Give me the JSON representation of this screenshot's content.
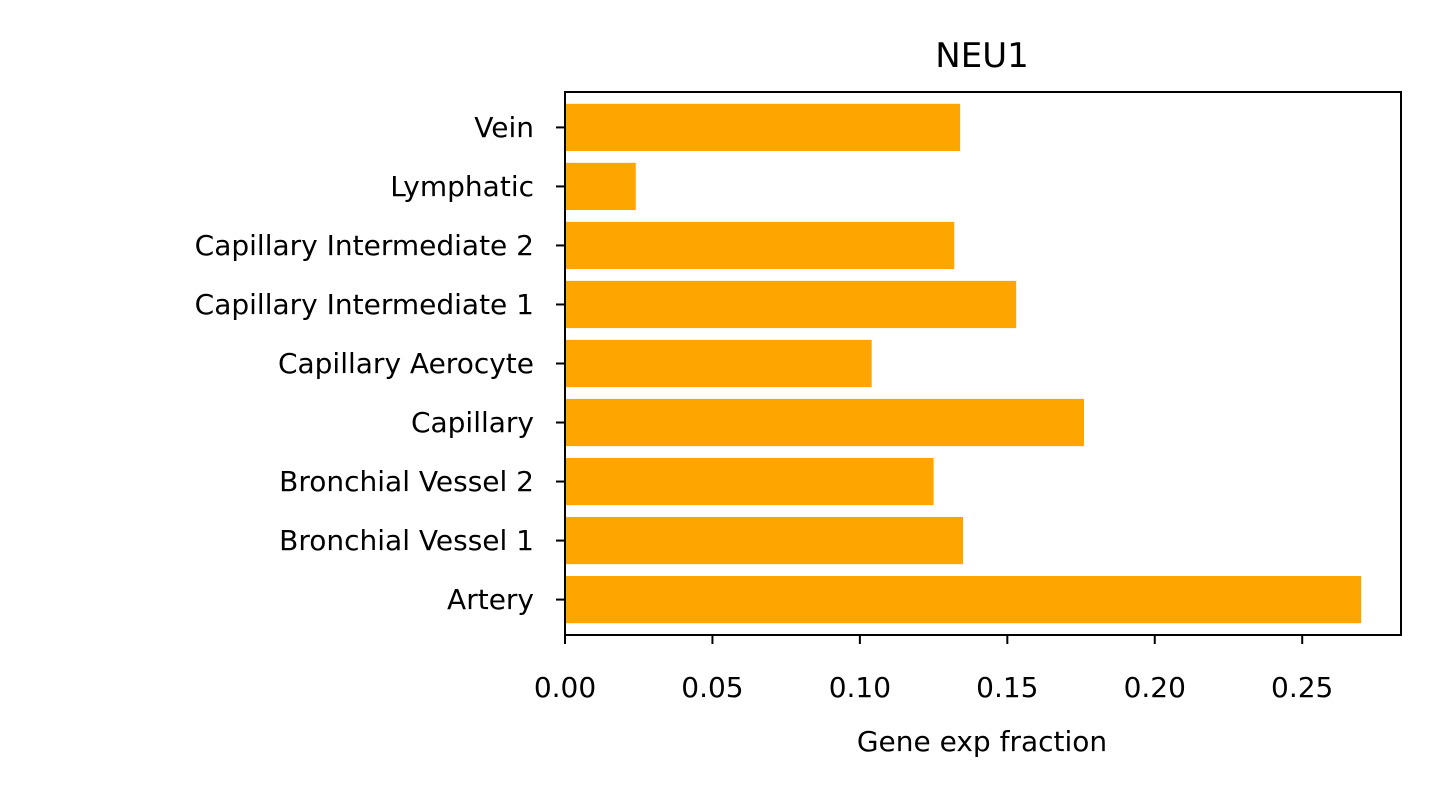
{
  "chart_data": {
    "type": "bar",
    "orientation": "horizontal",
    "title": "NEU1",
    "xlabel": "Gene exp fraction",
    "ylabel": "",
    "categories": [
      "Artery",
      "Bronchial Vessel 1",
      "Bronchial Vessel 2",
      "Capillary",
      "Capillary Aerocyte",
      "Capillary Intermediate 1",
      "Capillary Intermediate 2",
      "Lymphatic",
      "Vein"
    ],
    "values": [
      0.27,
      0.135,
      0.125,
      0.176,
      0.104,
      0.153,
      0.132,
      0.024,
      0.134
    ],
    "xlim": [
      0,
      0.2835
    ],
    "xticks": [
      0,
      0.05,
      0.1,
      0.15,
      0.2,
      0.25
    ],
    "xtick_labels": [
      "0.00",
      "0.05",
      "0.10",
      "0.15",
      "0.20",
      "0.25"
    ],
    "bar_color": "#ffa500",
    "grid": false,
    "legend": "none"
  }
}
